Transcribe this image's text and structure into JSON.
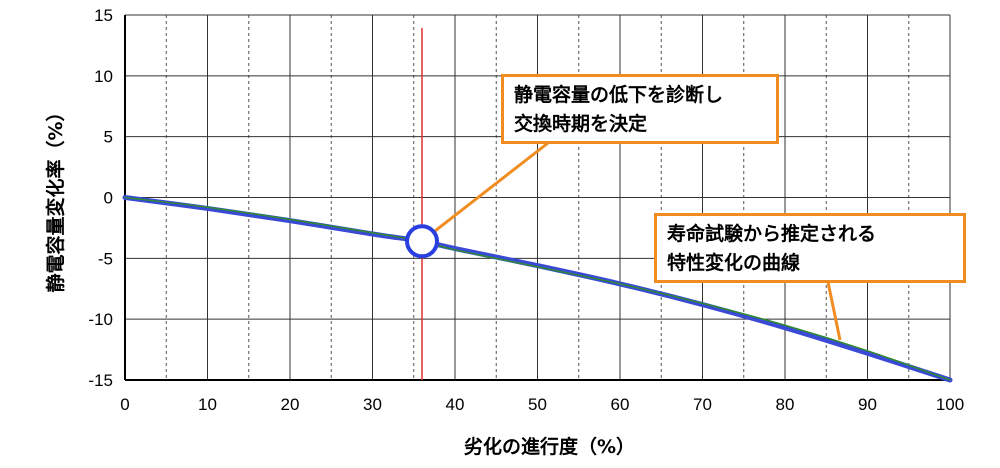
{
  "chart_data": {
    "type": "line",
    "xlabel": "劣化の進行度（%）",
    "ylabel": "静電容量変化率（%）",
    "xlim": [
      0,
      100
    ],
    "ylim": [
      -15,
      15
    ],
    "x_ticks": [
      0,
      10,
      20,
      30,
      40,
      50,
      60,
      70,
      80,
      90,
      100
    ],
    "y_ticks": [
      15,
      10,
      5,
      0,
      -5,
      -10,
      -15
    ],
    "grid": true,
    "series": [
      {
        "values_x": [
          0,
          10,
          20,
          30,
          36,
          40,
          50,
          60,
          70,
          80,
          90,
          100
        ],
        "values_y": [
          0,
          -0.9,
          -1.9,
          -3.0,
          -3.6,
          -4.2,
          -5.6,
          -7.1,
          -8.8,
          -10.7,
          -12.8,
          -15.0
        ],
        "color": "#3a49d6"
      },
      {
        "values_x": [
          0,
          10,
          20,
          30,
          36,
          40,
          50,
          60,
          70,
          80,
          90,
          100
        ],
        "values_y": [
          0,
          -0.8,
          -1.8,
          -2.9,
          -3.6,
          -4.3,
          -5.7,
          -7.1,
          -8.7,
          -10.5,
          -12.6,
          -15.0
        ],
        "color": "#2e8b2e"
      }
    ],
    "marker_line_x": 36,
    "marker_line_color": "#e03030",
    "marker_point": {
      "x": 36,
      "y": -3.6
    }
  },
  "callouts": {
    "diagnosis": {
      "lines": [
        "静電容量の低下を診断し",
        "交換時期を決定"
      ]
    },
    "life_test": {
      "lines": [
        "寿命試験から推定される",
        "特性変化の曲線"
      ]
    }
  },
  "colors": {
    "accent": "#f08c20",
    "curve": "#3a49d6",
    "marker": "#e03030"
  }
}
